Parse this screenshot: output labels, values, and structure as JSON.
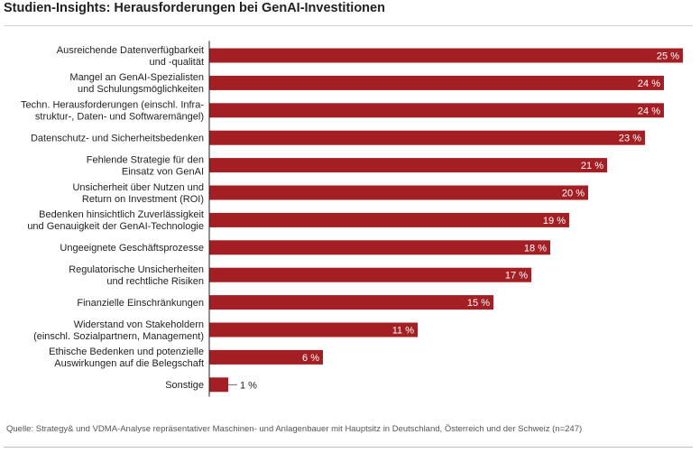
{
  "header": {
    "title": "Studien-Insights: Herausforderungen bei GenAI-Investitionen"
  },
  "footer": {
    "source": "Quelle: Strategy& und VDMA-Analyse repräsentativer Maschinen- und Anlagenbauer mit Hauptsitz in Deutschland, Österreich und der Schweiz (n=247)"
  },
  "colors": {
    "bar": "#a31f24",
    "axis": "#222222",
    "label_inside": "#ffffff",
    "label_outside": "#222222"
  },
  "chart_data": {
    "type": "bar",
    "orientation": "horizontal",
    "title": "Studien-Insights: Herausforderungen bei GenAI-Investitionen",
    "unit": "%",
    "xlim": [
      0,
      25
    ],
    "categories": [
      [
        "Ausreichende Datenverfügbarkeit",
        "und -qualität"
      ],
      [
        "Mangel an GenAI-Spezialisten",
        "und Schulungsmöglichkeiten"
      ],
      [
        "Techn. Herausforderungen (einschl. Infra-",
        "struktur-, Daten- und Softwaremängel)"
      ],
      [
        "Datenschutz- und Sicherheitsbedenken"
      ],
      [
        "Fehlende Strategie für den",
        "Einsatz von GenAI"
      ],
      [
        "Unsicherheit über Nutzen und",
        "Return on Investment (ROI)"
      ],
      [
        "Bedenken hinsichtlich Zuverlässigkeit",
        "und Genauigkeit der GenAI-Technologie"
      ],
      [
        "Ungeeignete Geschäftsprozesse"
      ],
      [
        "Regulatorische Unsicherheiten",
        "und rechtliche Risiken"
      ],
      [
        "Finanzielle Einschränkungen"
      ],
      [
        "Widerstand von Stakeholdern",
        "(einschl. Sozialpartnern, Management)"
      ],
      [
        "Ethische Bedenken und potenzielle",
        "Auswirkungen auf die Belegschaft"
      ],
      [
        "Sonstige"
      ]
    ],
    "values": [
      25,
      24,
      24,
      23,
      21,
      20,
      19,
      18,
      17,
      15,
      11,
      6,
      1
    ],
    "value_labels": [
      "25 %",
      "24 %",
      "24 %",
      "23 %",
      "21 %",
      "20 %",
      "19 %",
      "18 %",
      "17 %",
      "15 %",
      "11 %",
      "6 %",
      "1 %"
    ]
  }
}
